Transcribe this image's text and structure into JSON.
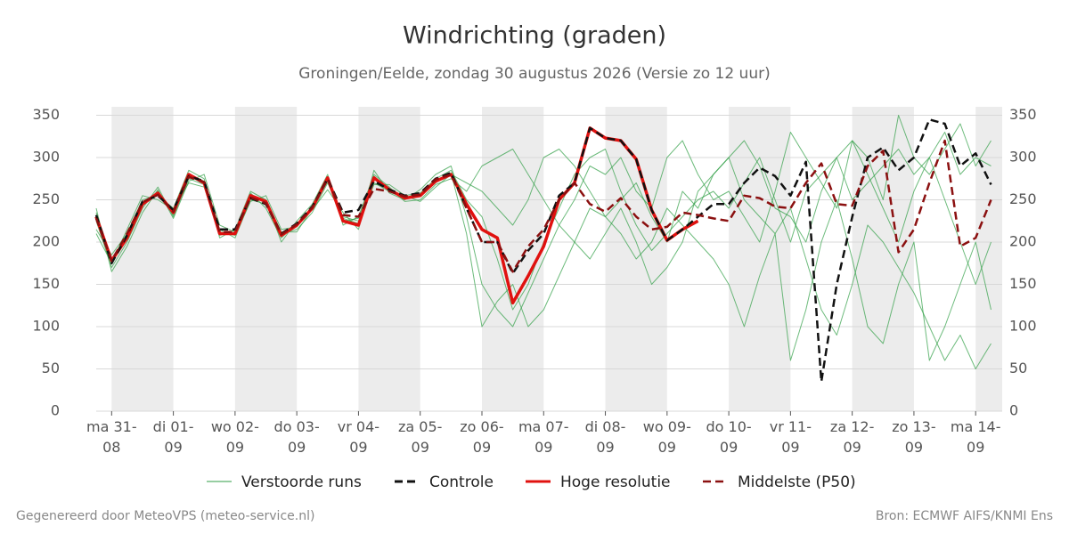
{
  "chart_data": {
    "type": "line",
    "title": "Windrichting (graden)",
    "subtitle": "Groningen/Eelde, zondag 30 augustus 2026 (Versie zo 12 uur)",
    "footer_left": "Gegenereerd door MeteoVPS (meteo-service.nl)",
    "footer_right": "Bron: ECMWF AIFS/KNMI Ens",
    "x": [
      -0.25,
      0,
      0.25,
      0.5,
      0.75,
      1,
      1.25,
      1.5,
      1.75,
      2,
      2.25,
      2.5,
      2.75,
      3,
      3.25,
      3.5,
      3.75,
      4,
      4.25,
      4.5,
      4.75,
      5,
      5.25,
      5.5,
      5.75,
      6,
      6.25,
      6.5,
      6.75,
      7,
      7.25,
      7.5,
      7.75,
      8,
      8.25,
      8.5,
      8.75,
      9,
      9.25,
      9.5,
      9.75,
      10,
      10.25,
      10.5,
      10.75,
      11,
      11.25,
      11.5,
      11.75,
      12,
      12.25,
      12.5,
      12.75,
      13,
      13.25,
      13.5,
      13.75,
      14,
      14.25
    ],
    "xlim": [
      -0.25,
      14.43
    ],
    "xticks": [
      {
        "value": 0,
        "label": "ma 31-08"
      },
      {
        "value": 1,
        "label": "di 01-09"
      },
      {
        "value": 2,
        "label": "wo 02-09"
      },
      {
        "value": 3,
        "label": "do 03-09"
      },
      {
        "value": 4,
        "label": "vr 04-09"
      },
      {
        "value": 5,
        "label": "za 05-09"
      },
      {
        "value": 6,
        "label": "zo 06-09"
      },
      {
        "value": 7,
        "label": "ma 07-09"
      },
      {
        "value": 8,
        "label": "di 08-09"
      },
      {
        "value": 9,
        "label": "wo 09-09"
      },
      {
        "value": 10,
        "label": "do 10-09"
      },
      {
        "value": 11,
        "label": "vr 11-09"
      },
      {
        "value": 12,
        "label": "za 12-09"
      },
      {
        "value": 13,
        "label": "zo 13-09"
      },
      {
        "value": 14,
        "label": "ma 14-09"
      }
    ],
    "ylim": [
      0,
      360
    ],
    "yticks": [
      0,
      50,
      100,
      150,
      200,
      250,
      300,
      350
    ],
    "grid": true,
    "ensemble": {
      "name": "Verstoorde runs",
      "color": "#2f9e44",
      "runs": [
        [
          225,
          170,
          200,
          240,
          265,
          230,
          275,
          268,
          215,
          205,
          250,
          245,
          210,
          215,
          235,
          270,
          230,
          225,
          270,
          260,
          255,
          258,
          275,
          285,
          250,
          230,
          180,
          120,
          150,
          200,
          240,
          280,
          300,
          310,
          260,
          220,
          190,
          210,
          230,
          250,
          260,
          240,
          270,
          300,
          250,
          200,
          260,
          280,
          300,
          250,
          270,
          290,
          310,
          280,
          300,
          330,
          280,
          300,
          290
        ],
        [
          215,
          185,
          210,
          250,
          255,
          240,
          285,
          275,
          205,
          215,
          260,
          250,
          200,
          225,
          245,
          280,
          220,
          230,
          280,
          265,
          248,
          250,
          268,
          275,
          260,
          290,
          300,
          310,
          280,
          250,
          220,
          200,
          240,
          230,
          210,
          180,
          200,
          240,
          220,
          200,
          180,
          150,
          100,
          160,
          210,
          60,
          120,
          200,
          250,
          180,
          100,
          80,
          150,
          200,
          60,
          100,
          150,
          200,
          120
        ],
        [
          240,
          165,
          195,
          235,
          262,
          228,
          272,
          280,
          220,
          212,
          258,
          240,
          205,
          222,
          238,
          262,
          235,
          215,
          285,
          258,
          250,
          262,
          280,
          290,
          230,
          150,
          120,
          100,
          140,
          180,
          220,
          250,
          290,
          280,
          300,
          260,
          240,
          300,
          320,
          280,
          250,
          260,
          230,
          200,
          260,
          330,
          300,
          270,
          240,
          320,
          300,
          250,
          350,
          300,
          280,
          310,
          340,
          290,
          320
        ],
        [
          210,
          175,
          215,
          255,
          250,
          238,
          270,
          265,
          212,
          208,
          248,
          255,
          215,
          218,
          242,
          275,
          228,
          222,
          268,
          268,
          255,
          248,
          265,
          280,
          270,
          260,
          240,
          220,
          250,
          300,
          310,
          290,
          260,
          230,
          250,
          270,
          230,
          200,
          260,
          240,
          280,
          300,
          250,
          230,
          210,
          240,
          180,
          120,
          90,
          150,
          220,
          200,
          170,
          140,
          100,
          60,
          90,
          50,
          80
        ],
        [
          235,
          180,
          205,
          245,
          260,
          232,
          280,
          272,
          208,
          214,
          252,
          248,
          212,
          212,
          240,
          272,
          225,
          228,
          278,
          262,
          252,
          256,
          270,
          282,
          210,
          100,
          130,
          150,
          100,
          120,
          160,
          200,
          180,
          210,
          240,
          200,
          150,
          170,
          200,
          260,
          280,
          300,
          320,
          290,
          240,
          230,
          200,
          260,
          300,
          320,
          280,
          240,
          200,
          260,
          300,
          250,
          200,
          150,
          200
        ]
      ]
    },
    "series": [
      {
        "name": "Controle",
        "color": "#111111",
        "dash": "9 5",
        "values": [
          232,
          175,
          208,
          248,
          255,
          238,
          278,
          272,
          215,
          215,
          252,
          245,
          210,
          222,
          242,
          275,
          235,
          238,
          272,
          262,
          255,
          258,
          275,
          282,
          240,
          200,
          200,
          163,
          190,
          210,
          255,
          270,
          335,
          323,
          320,
          298,
          238,
          202,
          215,
          230,
          245,
          245,
          270,
          288,
          278,
          255,
          295,
          35,
          150,
          230,
          300,
          312,
          285,
          300,
          345,
          340,
          290,
          305,
          268
        ]
      },
      {
        "name": "Hoge resolutie",
        "color": "#e0110f",
        "values": [
          230,
          178,
          205,
          245,
          258,
          235,
          280,
          270,
          210,
          210,
          255,
          248,
          208,
          220,
          240,
          276,
          225,
          220,
          276,
          262,
          252,
          255,
          272,
          280,
          245,
          215,
          205,
          128,
          160,
          195,
          250,
          270,
          335,
          323,
          320,
          298,
          238,
          202,
          215,
          225,
          null,
          null,
          null,
          null,
          null,
          null,
          null,
          null,
          null,
          null,
          null,
          null,
          null,
          null,
          null,
          null,
          null,
          null,
          null
        ]
      },
      {
        "name": "Middelste (P50)",
        "color": "#8b1010",
        "dash": "9 5",
        "values": [
          228,
          178,
          210,
          247,
          256,
          236,
          277,
          271,
          212,
          212,
          253,
          246,
          209,
          221,
          241,
          274,
          232,
          230,
          263,
          260,
          254,
          256,
          274,
          280,
          240,
          200,
          200,
          165,
          195,
          215,
          250,
          270,
          245,
          236,
          252,
          230,
          215,
          218,
          235,
          232,
          228,
          225,
          255,
          252,
          242,
          240,
          270,
          293,
          245,
          243,
          290,
          308,
          188,
          215,
          270,
          320,
          195,
          205,
          250
        ]
      }
    ]
  }
}
